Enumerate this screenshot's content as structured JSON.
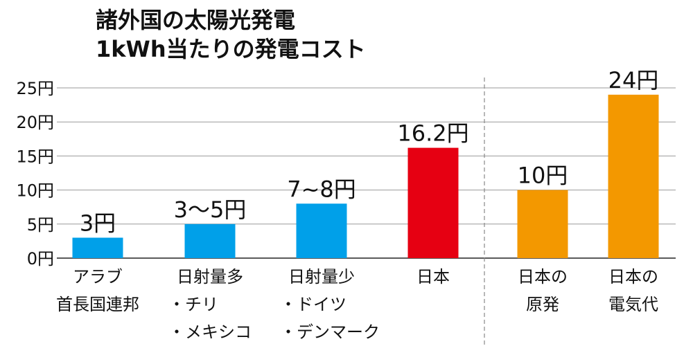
{
  "chart_data": {
    "type": "bar",
    "title_lines": [
      "諸外国の太陽光発電",
      "1kWh当たりの発電コスト"
    ],
    "xlabel": "",
    "ylabel": "",
    "ylim": [
      0,
      25
    ],
    "y_ticks": [
      {
        "value": 0,
        "label": "0円"
      },
      {
        "value": 5,
        "label": "5円"
      },
      {
        "value": 10,
        "label": "10円"
      },
      {
        "value": 15,
        "label": "15円"
      },
      {
        "value": 20,
        "label": "20円"
      },
      {
        "value": 25,
        "label": "25円"
      }
    ],
    "grid": true,
    "bars": [
      {
        "id": "arab",
        "category_lines": [
          "アラブ",
          "首長国連邦"
        ],
        "value": 3,
        "value_label": "3円",
        "color": "#00a0e9"
      },
      {
        "id": "low-sun",
        "category_lines": [
          "日射量多",
          "・チリ",
          "・メキシコ"
        ],
        "value": 5,
        "value_label": "3〜5円",
        "color": "#00a0e9"
      },
      {
        "id": "high-sun",
        "category_lines": [
          "日射量少",
          "・ドイツ",
          "・デンマーク"
        ],
        "value": 8,
        "value_label": "7~8円",
        "color": "#00a0e9"
      },
      {
        "id": "japan",
        "category_lines": [
          "日本"
        ],
        "value": 16.2,
        "value_label": "16.2円",
        "color": "#e60012"
      },
      {
        "id": "japan-nuclear",
        "category_lines": [
          "日本の",
          "原発"
        ],
        "value": 10,
        "value_label": "10円",
        "color": "#f39800"
      },
      {
        "id": "japan-electricity",
        "category_lines": [
          "日本の",
          "電気代"
        ],
        "value": 24,
        "value_label": "24円",
        "color": "#f39800"
      }
    ],
    "divider_after_index": 3
  }
}
